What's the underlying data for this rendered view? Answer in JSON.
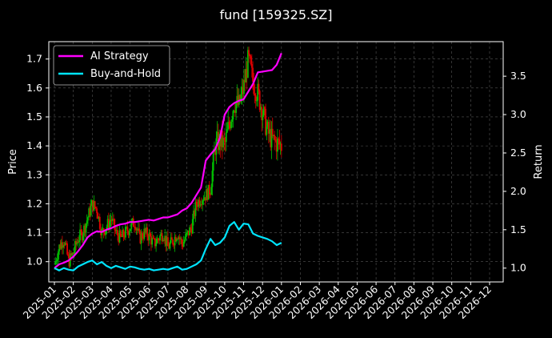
{
  "chart_data": {
    "type": "line",
    "title": "fund [159325.SZ]",
    "ylabel": "Price",
    "y2label": "Return",
    "grid": true,
    "legend_position": "top-left",
    "background": "#000000",
    "up_color": "#00c000",
    "down_color": "#e00000",
    "x_ticks": [
      "2025-01",
      "2025-02",
      "2025-03",
      "2025-04",
      "2025-05",
      "2025-06",
      "2025-07",
      "2025-08",
      "2025-09",
      "2025-10",
      "2025-11",
      "2025-12",
      "2026-01",
      "2026-02",
      "2026-03",
      "2026-04",
      "2026-05",
      "2026-06",
      "2026-07",
      "2026-08",
      "2026-09",
      "2026-10",
      "2026-11",
      "2026-12"
    ],
    "y_ticks": [
      "1.0",
      "1.1",
      "1.2",
      "1.3",
      "1.4",
      "1.5",
      "1.6",
      "1.7"
    ],
    "y2_ticks": [
      "1.0",
      "1.5",
      "2.0",
      "2.5",
      "3.0",
      "3.5"
    ],
    "ylim": [
      0.93,
      1.76
    ],
    "y2lim": [
      0.82,
      3.95
    ],
    "price": {
      "x": [
        0,
        0.25,
        0.5,
        0.75,
        1,
        1.25,
        1.5,
        1.75,
        2,
        2.25,
        2.5,
        2.75,
        3,
        3.25,
        3.5,
        3.75,
        4,
        4.25,
        4.5,
        4.75,
        5,
        5.25,
        5.5,
        5.75,
        6,
        6.25,
        6.5,
        6.75,
        7,
        7.25,
        7.5,
        7.75,
        8,
        8.25,
        8.5,
        8.75,
        9,
        9.25,
        9.5,
        9.75,
        10,
        10.25,
        10.5,
        10.75,
        11,
        11.25,
        11.5,
        11.75,
        12
      ],
      "close": [
        0.99,
        1.05,
        1.08,
        1.0,
        1.03,
        1.08,
        1.1,
        1.15,
        1.2,
        1.18,
        1.1,
        1.12,
        1.15,
        1.1,
        1.08,
        1.1,
        1.12,
        1.14,
        1.08,
        1.1,
        1.09,
        1.06,
        1.08,
        1.1,
        1.05,
        1.07,
        1.1,
        1.06,
        1.09,
        1.12,
        1.2,
        1.22,
        1.23,
        1.25,
        1.4,
        1.42,
        1.4,
        1.48,
        1.55,
        1.54,
        1.6,
        1.7,
        1.62,
        1.58,
        1.52,
        1.45,
        1.42,
        1.41,
        1.4
      ]
    },
    "series": [
      {
        "name": "AI Strategy",
        "color": "#ff00ff",
        "x": [
          0,
          0.25,
          0.5,
          0.75,
          1,
          1.25,
          1.5,
          1.75,
          2,
          2.25,
          2.5,
          2.75,
          3,
          3.25,
          3.5,
          3.75,
          4,
          4.25,
          4.5,
          4.75,
          5,
          5.25,
          5.5,
          5.75,
          6,
          6.25,
          6.5,
          6.75,
          7,
          7.25,
          7.5,
          7.75,
          8,
          8.25,
          8.5,
          8.75,
          9,
          9.25,
          9.5,
          9.75,
          10,
          10.25,
          10.5,
          10.75,
          11,
          11.25,
          11.5,
          11.75,
          12
        ],
        "values": [
          1.0,
          1.05,
          1.07,
          1.1,
          1.15,
          1.22,
          1.3,
          1.4,
          1.45,
          1.48,
          1.47,
          1.5,
          1.52,
          1.55,
          1.57,
          1.58,
          1.6,
          1.6,
          1.61,
          1.62,
          1.63,
          1.62,
          1.64,
          1.66,
          1.66,
          1.68,
          1.7,
          1.75,
          1.78,
          1.85,
          1.95,
          2.05,
          2.4,
          2.48,
          2.55,
          2.7,
          3.0,
          3.1,
          3.15,
          3.18,
          3.2,
          3.3,
          3.4,
          3.55,
          3.56,
          3.57,
          3.58,
          3.65,
          3.8
        ]
      },
      {
        "name": "Buy-and-Hold",
        "color": "#00e5ff",
        "x": [
          0,
          0.25,
          0.5,
          0.75,
          1,
          1.25,
          1.5,
          1.75,
          2,
          2.25,
          2.5,
          2.75,
          3,
          3.25,
          3.5,
          3.75,
          4,
          4.25,
          4.5,
          4.75,
          5,
          5.25,
          5.5,
          5.75,
          6,
          6.25,
          6.5,
          6.75,
          7,
          7.25,
          7.5,
          7.75,
          8,
          8.25,
          8.5,
          8.75,
          9,
          9.25,
          9.5,
          9.75,
          10,
          10.25,
          10.5,
          10.75,
          11,
          11.25,
          11.5,
          11.75,
          12
        ],
        "values": [
          1.0,
          0.97,
          1.0,
          0.98,
          0.97,
          1.02,
          1.05,
          1.08,
          1.1,
          1.05,
          1.08,
          1.03,
          1.0,
          1.03,
          1.01,
          0.99,
          1.02,
          1.01,
          0.99,
          0.98,
          0.99,
          0.97,
          0.98,
          0.99,
          0.98,
          1.0,
          1.02,
          0.98,
          0.99,
          1.02,
          1.05,
          1.1,
          1.25,
          1.38,
          1.3,
          1.33,
          1.4,
          1.55,
          1.6,
          1.5,
          1.58,
          1.57,
          1.45,
          1.42,
          1.4,
          1.38,
          1.35,
          1.3,
          1.33
        ]
      }
    ]
  }
}
